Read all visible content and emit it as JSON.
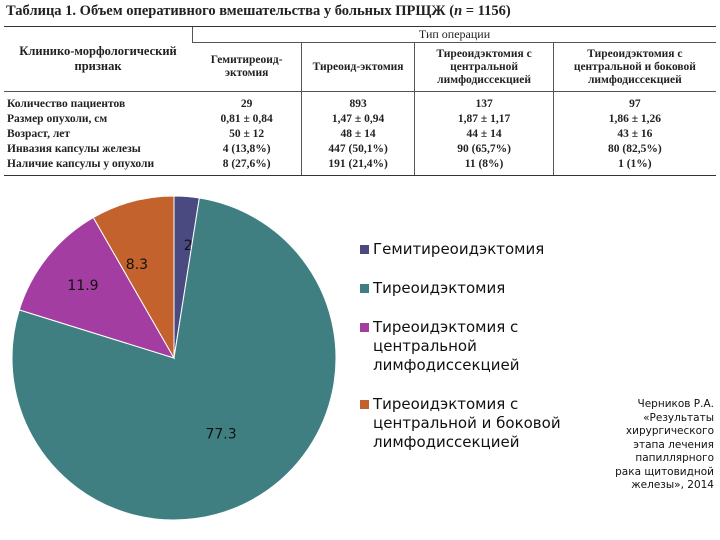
{
  "table": {
    "caption_prefix": "Таблица 1. Объем оперативного вмешательства у больных ПРЩЖ (",
    "caption_n": "n",
    "caption_suffix": " = 1156)",
    "feature_header": "Клинико-морфологический признак",
    "group_header": "Тип операции",
    "columns": [
      "Гемитиреоид-эктомия",
      "Тиреоид-эктомия",
      "Тиреоидэктомия с центральной лимфодиссекцией",
      "Тиреоидэктомия с центральной и боковой лимфодиссекцией"
    ],
    "rows": [
      {
        "label": "Количество пациентов",
        "values": [
          "29",
          "893",
          "137",
          "97"
        ]
      },
      {
        "label": "Размер опухоли, см",
        "values": [
          "0,81 ± 0,84",
          "1,47 ± 0,94",
          "1,87 ± 1,17",
          "1,86 ± 1,26"
        ]
      },
      {
        "label": "Возраст, лет",
        "values": [
          "50 ± 12",
          "48 ± 14",
          "44 ± 14",
          "43 ± 16"
        ]
      },
      {
        "label": "Инвазия капсулы железы",
        "values": [
          "4 (13,8%)",
          "447 (50,1%)",
          "90 (65,7%)",
          "80 (82,5%)"
        ]
      },
      {
        "label": "Наличие капсулы у опухоли",
        "values": [
          "8 (27,6%)",
          "191 (21,4%)",
          "11 (8%)",
          "1 (1%)"
        ]
      }
    ]
  },
  "chart_data": {
    "type": "pie",
    "title": "",
    "categories": [
      "Гемитиреоидэктомия",
      "Тиреоидэктомия",
      "Тиреоидэктомия с центральной лимфодиссекцией",
      "Тиреоидэктомия с центральной и боковой лимфодиссекцией"
    ],
    "values": [
      2.5,
      77.3,
      11.9,
      8.3
    ],
    "labels": [
      "2.5",
      "77.3",
      "11.9",
      "8.3"
    ],
    "colors": [
      "#4b4a80",
      "#3f7f82",
      "#a43da1",
      "#c4622d"
    ],
    "start_angle": "12 o'clock",
    "direction": "clockwise",
    "legend_position": "right"
  },
  "legend": {
    "items": [
      "Гемитиреоидэктомия",
      "Тиреоидэктомия",
      "Тиреоидэктомия с центральной лимфодиссекцией",
      "Тиреоидэктомия с центральной и боковой лимфодиссекцией"
    ]
  },
  "credit": "Черников Р.А. «Результаты хирургического этапа лечения папиллярного рака щитовидной железы», 2014"
}
